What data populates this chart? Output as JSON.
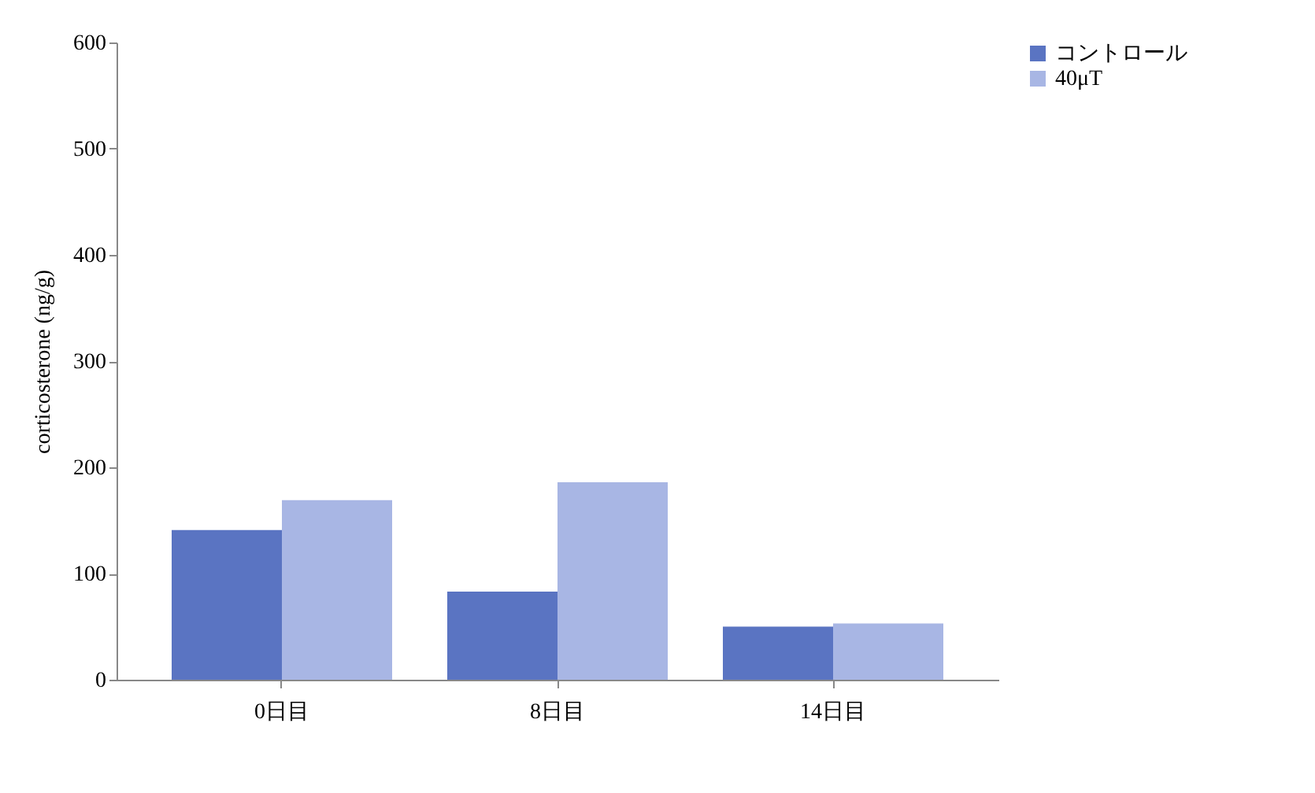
{
  "chart_data": {
    "type": "bar",
    "ylabel": "corticosterone (ng/g)",
    "categories": [
      "0日目",
      "8日目",
      "14日目"
    ],
    "series": [
      {
        "name": "コントロール",
        "color": "#5a74c2",
        "values": [
          141,
          83,
          50
        ]
      },
      {
        "name": "40μT",
        "color": "#a8b6e4",
        "values": [
          169,
          186,
          53
        ]
      }
    ],
    "ylim": [
      0,
      600
    ],
    "yticks": [
      0,
      100,
      200,
      300,
      400,
      500,
      600
    ],
    "grid": false,
    "legend": "right"
  }
}
